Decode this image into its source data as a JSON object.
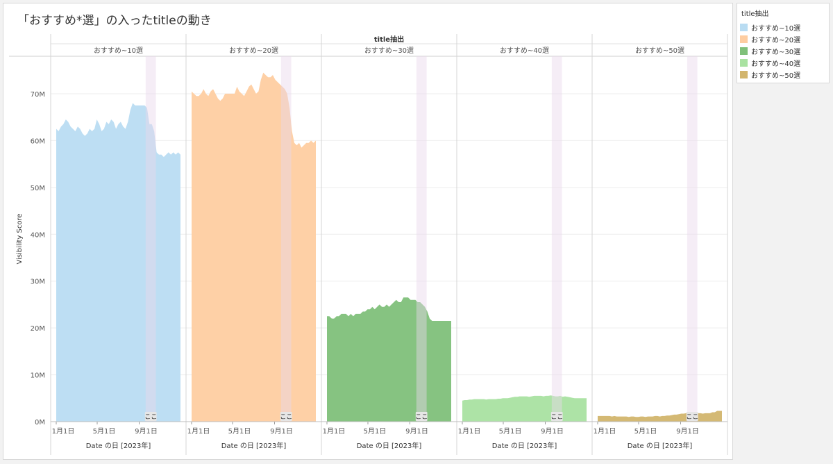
{
  "title": "「おすすめ*選」の入ったtitleの動き",
  "legend": {
    "title": "title抽出",
    "items": [
      {
        "label": "おすすめ~10選",
        "color": "#b9dcf2"
      },
      {
        "label": "おすすめ~20選",
        "color": "#fecda1"
      },
      {
        "label": "おすすめ~30選",
        "color": "#80c07a"
      },
      {
        "label": "おすすめ~40選",
        "color": "#a9e2a1"
      },
      {
        "label": "おすすめ~50選",
        "color": "#d2b56d"
      }
    ]
  },
  "chart_data": {
    "type": "area",
    "column_header": "title抽出",
    "ylabel": "Visibility Score",
    "xlabel": "Date の日 [2023年]",
    "x_ticks": [
      "1月1日",
      "5月1日",
      "9月1日"
    ],
    "y_ticks": [
      "0M",
      "10M",
      "20M",
      "30M",
      "40M",
      "50M",
      "60M",
      "70M"
    ],
    "ylim": [
      0,
      78000000
    ],
    "highlight_label": "ここ",
    "highlight_range": [
      "2023-09-20",
      "2023-10-20"
    ],
    "series": [
      {
        "name": "おすすめ~10選",
        "color": "#b9dcf2",
        "dates": [
          "2023-01-01",
          "2023-01-08",
          "2023-01-15",
          "2023-01-22",
          "2023-01-29",
          "2023-02-05",
          "2023-02-12",
          "2023-02-19",
          "2023-02-26",
          "2023-03-05",
          "2023-03-12",
          "2023-03-19",
          "2023-03-26",
          "2023-04-02",
          "2023-04-09",
          "2023-04-16",
          "2023-04-23",
          "2023-04-30",
          "2023-05-07",
          "2023-05-14",
          "2023-05-21",
          "2023-05-28",
          "2023-06-04",
          "2023-06-11",
          "2023-06-18",
          "2023-06-25",
          "2023-07-02",
          "2023-07-09",
          "2023-07-16",
          "2023-07-23",
          "2023-07-30",
          "2023-08-06",
          "2023-08-13",
          "2023-08-20",
          "2023-08-27",
          "2023-09-03",
          "2023-09-10",
          "2023-09-17",
          "2023-09-24",
          "2023-10-01",
          "2023-10-08",
          "2023-10-15",
          "2023-10-22",
          "2023-10-29",
          "2023-11-05",
          "2023-11-12",
          "2023-11-19",
          "2023-11-26",
          "2023-12-03",
          "2023-12-10",
          "2023-12-17",
          "2023-12-24",
          "2023-12-31"
        ],
        "values": [
          62.5,
          62,
          63,
          63.5,
          64.5,
          64,
          63,
          62.5,
          62,
          63,
          62.5,
          61.5,
          61,
          61.5,
          62.5,
          62,
          62.5,
          64.5,
          63.5,
          62,
          62.5,
          64,
          63.5,
          64.5,
          64,
          62.5,
          63.5,
          64,
          63,
          62.5,
          64,
          66.5,
          68,
          67.5,
          67.5,
          67.5,
          67.5,
          67.5,
          67,
          63.5,
          63.5,
          62,
          57.5,
          57,
          57,
          56.5,
          57,
          57.5,
          57,
          57.5,
          57,
          57.5,
          57
        ]
      },
      {
        "name": "おすすめ~20選",
        "color": "#fecda1",
        "dates": [
          "2023-01-01",
          "2023-01-08",
          "2023-01-15",
          "2023-01-22",
          "2023-01-29",
          "2023-02-05",
          "2023-02-12",
          "2023-02-19",
          "2023-02-26",
          "2023-03-05",
          "2023-03-12",
          "2023-03-19",
          "2023-03-26",
          "2023-04-02",
          "2023-04-09",
          "2023-04-16",
          "2023-04-23",
          "2023-04-30",
          "2023-05-07",
          "2023-05-14",
          "2023-05-21",
          "2023-05-28",
          "2023-06-04",
          "2023-06-11",
          "2023-06-18",
          "2023-06-25",
          "2023-07-02",
          "2023-07-09",
          "2023-07-16",
          "2023-07-23",
          "2023-07-30",
          "2023-08-06",
          "2023-08-13",
          "2023-08-20",
          "2023-08-27",
          "2023-09-03",
          "2023-09-10",
          "2023-09-17",
          "2023-09-24",
          "2023-10-01",
          "2023-10-08",
          "2023-10-15",
          "2023-10-22",
          "2023-10-29",
          "2023-11-05",
          "2023-11-12",
          "2023-11-19",
          "2023-11-26",
          "2023-12-03",
          "2023-12-10",
          "2023-12-17",
          "2023-12-24",
          "2023-12-31"
        ],
        "values": [
          70.5,
          70,
          69.5,
          69.5,
          70,
          71,
          70,
          69.5,
          70.5,
          71,
          70,
          69,
          68.5,
          69,
          70,
          70,
          70,
          70,
          70,
          71.5,
          70.5,
          70,
          69.5,
          70.5,
          71.5,
          72,
          71,
          70,
          70.5,
          73,
          74.5,
          74,
          73.5,
          73.5,
          74,
          73,
          72.5,
          72,
          71.5,
          71,
          70,
          67,
          62,
          59.5,
          59,
          59.5,
          58.5,
          59,
          59.5,
          59.5,
          60,
          59.5,
          60
        ]
      },
      {
        "name": "おすすめ~30選",
        "color": "#80c07a",
        "dates": [
          "2023-01-01",
          "2023-01-08",
          "2023-01-15",
          "2023-01-22",
          "2023-01-29",
          "2023-02-05",
          "2023-02-12",
          "2023-02-19",
          "2023-02-26",
          "2023-03-05",
          "2023-03-12",
          "2023-03-19",
          "2023-03-26",
          "2023-04-02",
          "2023-04-09",
          "2023-04-16",
          "2023-04-23",
          "2023-04-30",
          "2023-05-07",
          "2023-05-14",
          "2023-05-21",
          "2023-05-28",
          "2023-06-04",
          "2023-06-11",
          "2023-06-18",
          "2023-06-25",
          "2023-07-02",
          "2023-07-09",
          "2023-07-16",
          "2023-07-23",
          "2023-07-30",
          "2023-08-06",
          "2023-08-13",
          "2023-08-20",
          "2023-08-27",
          "2023-09-03",
          "2023-09-10",
          "2023-09-17",
          "2023-09-24",
          "2023-10-01",
          "2023-10-08",
          "2023-10-15",
          "2023-10-22",
          "2023-10-29",
          "2023-11-05",
          "2023-11-12",
          "2023-11-19",
          "2023-11-26",
          "2023-12-03",
          "2023-12-10",
          "2023-12-17",
          "2023-12-24",
          "2023-12-31"
        ],
        "values": [
          22.5,
          22.5,
          22,
          22,
          22.5,
          22.5,
          23,
          23,
          23,
          22.5,
          23,
          22.5,
          23,
          23,
          23,
          23.5,
          23.5,
          24,
          24,
          24.5,
          24,
          24.5,
          25,
          24.5,
          24.5,
          25,
          24.5,
          25,
          25.5,
          26,
          25.5,
          25.5,
          26.5,
          26.5,
          26.5,
          26,
          26,
          26,
          25.5,
          25.5,
          25,
          24.5,
          23.5,
          22,
          21.5,
          21.5,
          21.5,
          21.5,
          21.5,
          21.5,
          21.5,
          21.5,
          21.5
        ]
      },
      {
        "name": "おすすめ~40選",
        "color": "#a9e2a1",
        "dates": [
          "2023-01-01",
          "2023-01-08",
          "2023-01-15",
          "2023-01-22",
          "2023-01-29",
          "2023-02-05",
          "2023-02-12",
          "2023-02-19",
          "2023-02-26",
          "2023-03-05",
          "2023-03-12",
          "2023-03-19",
          "2023-03-26",
          "2023-04-02",
          "2023-04-09",
          "2023-04-16",
          "2023-04-23",
          "2023-04-30",
          "2023-05-07",
          "2023-05-14",
          "2023-05-21",
          "2023-05-28",
          "2023-06-04",
          "2023-06-11",
          "2023-06-18",
          "2023-06-25",
          "2023-07-02",
          "2023-07-09",
          "2023-07-16",
          "2023-07-23",
          "2023-07-30",
          "2023-08-06",
          "2023-08-13",
          "2023-08-20",
          "2023-08-27",
          "2023-09-03",
          "2023-09-10",
          "2023-09-17",
          "2023-09-24",
          "2023-10-01",
          "2023-10-08",
          "2023-10-15",
          "2023-10-22",
          "2023-10-29",
          "2023-11-05",
          "2023-11-12",
          "2023-11-19",
          "2023-11-26",
          "2023-12-03",
          "2023-12-10",
          "2023-12-17",
          "2023-12-24",
          "2023-12-31"
        ],
        "values": [
          4.5,
          4.6,
          4.6,
          4.7,
          4.7,
          4.8,
          4.8,
          4.8,
          4.8,
          4.8,
          4.7,
          4.8,
          4.8,
          4.8,
          4.8,
          4.9,
          4.9,
          5,
          5,
          5,
          5.1,
          5.2,
          5.3,
          5.3,
          5.4,
          5.4,
          5.4,
          5.4,
          5.3,
          5.4,
          5.5,
          5.5,
          5.5,
          5.5,
          5.4,
          5.5,
          5.5,
          5.6,
          5.5,
          5.4,
          5.4,
          5.5,
          5.3,
          5.4,
          5.3,
          5.2,
          5.1,
          5,
          5,
          5,
          5,
          5,
          5
        ]
      },
      {
        "name": "おすすめ~50選",
        "color": "#d2b56d",
        "dates": [
          "2023-01-01",
          "2023-01-08",
          "2023-01-15",
          "2023-01-22",
          "2023-01-29",
          "2023-02-05",
          "2023-02-12",
          "2023-02-19",
          "2023-02-26",
          "2023-03-05",
          "2023-03-12",
          "2023-03-19",
          "2023-03-26",
          "2023-04-02",
          "2023-04-09",
          "2023-04-16",
          "2023-04-23",
          "2023-04-30",
          "2023-05-07",
          "2023-05-14",
          "2023-05-21",
          "2023-05-28",
          "2023-06-04",
          "2023-06-11",
          "2023-06-18",
          "2023-06-25",
          "2023-07-02",
          "2023-07-09",
          "2023-07-16",
          "2023-07-23",
          "2023-07-30",
          "2023-08-06",
          "2023-08-13",
          "2023-08-20",
          "2023-08-27",
          "2023-09-03",
          "2023-09-10",
          "2023-09-17",
          "2023-09-24",
          "2023-10-01",
          "2023-10-08",
          "2023-10-15",
          "2023-10-22",
          "2023-10-29",
          "2023-11-05",
          "2023-11-12",
          "2023-11-19",
          "2023-11-26",
          "2023-12-03",
          "2023-12-10",
          "2023-12-17",
          "2023-12-24",
          "2023-12-31"
        ],
        "values": [
          1.2,
          1.2,
          1.2,
          1.2,
          1.2,
          1.2,
          1.1,
          1.2,
          1.1,
          1.1,
          1.1,
          1.1,
          1.1,
          1.0,
          1.1,
          1.1,
          1.0,
          1.0,
          1.1,
          1.1,
          1.0,
          1.1,
          1.1,
          1.1,
          1.2,
          1.2,
          1.1,
          1.2,
          1.2,
          1.3,
          1.3,
          1.4,
          1.5,
          1.5,
          1.6,
          1.7,
          1.7,
          1.8,
          1.8,
          1.9,
          1.9,
          1.9,
          1.8,
          1.8,
          1.7,
          1.8,
          1.8,
          1.8,
          2.0,
          2.0,
          2.3,
          2.3,
          2.3
        ]
      }
    ]
  }
}
